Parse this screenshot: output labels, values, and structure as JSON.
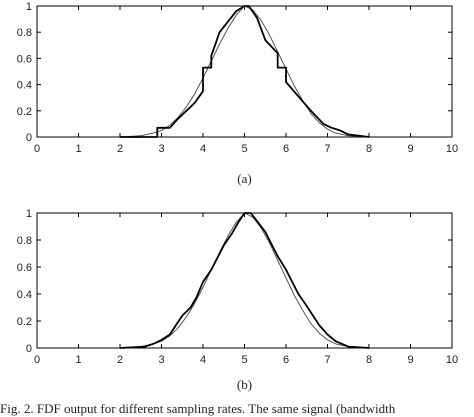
{
  "caption": "Fig. 2.   FDF output for different sampling rates. The same signal (bandwidth",
  "chart_data": [
    {
      "type": "line",
      "label": "(a)",
      "xlim": [
        0,
        10
      ],
      "ylim": [
        0,
        1
      ],
      "xticks": [
        "0",
        "1",
        "2",
        "3",
        "4",
        "5",
        "6",
        "7",
        "8",
        "9",
        "10"
      ],
      "yticks": [
        "0",
        "0.2",
        "0.4",
        "0.6",
        "0.8",
        "1"
      ],
      "xtick_values": [
        0,
        1,
        2,
        3,
        4,
        5,
        6,
        7,
        8,
        9,
        10
      ],
      "ytick_values": [
        0,
        0.2,
        0.4,
        0.6,
        0.8,
        1
      ],
      "series": [
        {
          "style": "thin",
          "x": [
            2.0,
            2.5,
            2.8,
            3.0,
            3.2,
            3.4,
            3.6,
            3.8,
            4.0,
            4.2,
            4.4,
            4.6,
            4.8,
            5.0,
            5.2,
            5.4,
            5.6,
            5.8,
            6.0,
            6.2,
            6.4,
            6.6,
            6.8,
            7.0,
            7.2,
            7.5,
            8.0
          ],
          "y": [
            0.0,
            0.01,
            0.03,
            0.05,
            0.09,
            0.15,
            0.23,
            0.33,
            0.45,
            0.58,
            0.71,
            0.83,
            0.93,
            1.0,
            0.97,
            0.89,
            0.78,
            0.65,
            0.52,
            0.39,
            0.28,
            0.18,
            0.11,
            0.06,
            0.03,
            0.01,
            0.0
          ]
        },
        {
          "style": "thick",
          "x": [
            2.0,
            2.9,
            2.9,
            3.2,
            3.4,
            3.6,
            3.8,
            4.0,
            4.0,
            4.2,
            4.2,
            4.4,
            4.6,
            4.8,
            5.0,
            5.1,
            5.3,
            5.5,
            5.8,
            5.8,
            6.0,
            6.0,
            6.3,
            6.6,
            6.9,
            7.1,
            7.3,
            7.5,
            8.0
          ],
          "y": [
            0.0,
            0.0,
            0.07,
            0.07,
            0.14,
            0.2,
            0.26,
            0.35,
            0.53,
            0.53,
            0.62,
            0.8,
            0.88,
            0.96,
            1.0,
            1.0,
            0.91,
            0.74,
            0.64,
            0.53,
            0.53,
            0.42,
            0.31,
            0.2,
            0.1,
            0.07,
            0.05,
            0.02,
            0.0
          ]
        }
      ]
    },
    {
      "type": "line",
      "label": "(b)",
      "xlim": [
        0,
        10
      ],
      "ylim": [
        0,
        1
      ],
      "xticks": [
        "0",
        "1",
        "2",
        "3",
        "4",
        "5",
        "6",
        "7",
        "8",
        "9",
        "10"
      ],
      "yticks": [
        "0",
        "0.2",
        "0.4",
        "0.6",
        "0.8",
        "1"
      ],
      "xtick_values": [
        0,
        1,
        2,
        3,
        4,
        5,
        6,
        7,
        8,
        9,
        10
      ],
      "ytick_values": [
        0,
        0.2,
        0.4,
        0.6,
        0.8,
        1
      ],
      "series": [
        {
          "style": "thin",
          "x": [
            2.0,
            2.5,
            2.8,
            3.0,
            3.2,
            3.4,
            3.6,
            3.8,
            4.0,
            4.2,
            4.4,
            4.6,
            4.8,
            5.0,
            5.2,
            5.4,
            5.6,
            5.8,
            6.0,
            6.2,
            6.4,
            6.6,
            6.8,
            7.0,
            7.2,
            7.5,
            8.0
          ],
          "y": [
            0.0,
            0.01,
            0.03,
            0.05,
            0.09,
            0.15,
            0.23,
            0.33,
            0.45,
            0.58,
            0.71,
            0.83,
            0.93,
            1.0,
            0.97,
            0.89,
            0.78,
            0.65,
            0.52,
            0.39,
            0.28,
            0.18,
            0.11,
            0.06,
            0.03,
            0.01,
            0.0
          ]
        },
        {
          "style": "thick",
          "x": [
            2.0,
            2.6,
            2.8,
            3.0,
            3.2,
            3.35,
            3.5,
            3.7,
            3.85,
            4.0,
            4.2,
            4.35,
            4.5,
            4.7,
            4.85,
            5.0,
            5.15,
            5.3,
            5.5,
            5.65,
            5.8,
            6.0,
            6.15,
            6.3,
            6.5,
            6.65,
            6.8,
            7.0,
            7.2,
            7.5,
            8.0
          ],
          "y": [
            0.0,
            0.01,
            0.03,
            0.06,
            0.1,
            0.17,
            0.24,
            0.3,
            0.38,
            0.49,
            0.58,
            0.67,
            0.76,
            0.85,
            0.93,
            1.0,
            1.0,
            0.94,
            0.86,
            0.77,
            0.68,
            0.58,
            0.49,
            0.4,
            0.31,
            0.24,
            0.17,
            0.1,
            0.05,
            0.01,
            0.0
          ]
        }
      ]
    }
  ]
}
